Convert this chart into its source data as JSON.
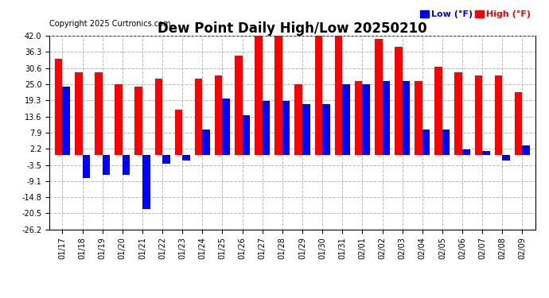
{
  "title": "Dew Point Daily High/Low 20250210",
  "copyright": "Copyright 2025 Curtronics.com",
  "legend_low": "Low (°F)",
  "legend_high": "High (°F)",
  "low_color": "#0000ff",
  "high_color": "#ff0000",
  "background_color": "#ffffff",
  "grid_color": "#b8b8b8",
  "ylim": [
    -26.2,
    42.0
  ],
  "yticks": [
    42.0,
    36.3,
    30.6,
    25.0,
    19.3,
    13.6,
    7.9,
    2.2,
    -3.5,
    -9.1,
    -14.8,
    -20.5,
    -26.2
  ],
  "dates": [
    "01/17",
    "01/18",
    "01/19",
    "01/20",
    "01/21",
    "01/22",
    "01/23",
    "01/24",
    "01/25",
    "01/26",
    "01/27",
    "01/28",
    "01/29",
    "01/30",
    "01/31",
    "02/01",
    "02/02",
    "02/03",
    "02/04",
    "02/05",
    "02/06",
    "02/07",
    "02/08",
    "02/09"
  ],
  "high_values": [
    34.0,
    29.0,
    29.0,
    25.0,
    24.0,
    27.0,
    16.0,
    27.0,
    28.0,
    35.0,
    42.0,
    42.0,
    25.0,
    42.0,
    42.0,
    26.0,
    41.0,
    38.0,
    26.0,
    31.0,
    29.0,
    28.0,
    28.0,
    22.0
  ],
  "low_values": [
    24.0,
    -8.0,
    -7.0,
    -7.0,
    -19.0,
    -3.0,
    -2.0,
    9.0,
    20.0,
    14.0,
    19.0,
    19.0,
    18.0,
    18.0,
    25.0,
    25.0,
    26.0,
    26.0,
    9.0,
    9.0,
    2.0,
    1.5,
    -2.0,
    3.5
  ],
  "bar_width": 0.38,
  "figsize": [
    6.9,
    3.75
  ],
  "dpi": 100,
  "title_fontsize": 12,
  "tick_fontsize": 7,
  "copyright_fontsize": 7,
  "legend_fontsize": 8
}
